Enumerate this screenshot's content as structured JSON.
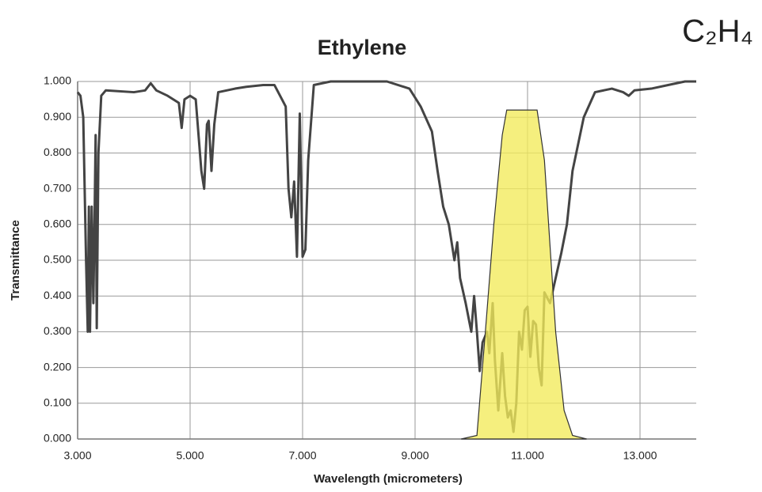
{
  "chart_data": {
    "type": "line",
    "title": "Ethylene",
    "formula": "C₂H₄",
    "x_label": "Wavelength (micrometers)",
    "y_label": "Transmittance",
    "xlim": [
      3,
      14
    ],
    "ylim": [
      0,
      1
    ],
    "xticks": [
      {
        "value": 3,
        "label": "3.000"
      },
      {
        "value": 5,
        "label": "5.000"
      },
      {
        "value": 7,
        "label": "7.000"
      },
      {
        "value": 9,
        "label": "9.000"
      },
      {
        "value": 11,
        "label": "11.000"
      },
      {
        "value": 13,
        "label": "13.000"
      }
    ],
    "yticks": [
      {
        "value": 0,
        "label": "0.000"
      },
      {
        "value": 0.1,
        "label": "0.100"
      },
      {
        "value": 0.2,
        "label": "0.200"
      },
      {
        "value": 0.3,
        "label": "0.300"
      },
      {
        "value": 0.4,
        "label": "0.400"
      },
      {
        "value": 0.5,
        "label": "0.500"
      },
      {
        "value": 0.6,
        "label": "0.600"
      },
      {
        "value": 0.7,
        "label": "0.700"
      },
      {
        "value": 0.8,
        "label": "0.800"
      },
      {
        "value": 0.9,
        "label": "0.900"
      },
      {
        "value": 1,
        "label": "1.000"
      }
    ],
    "grid": true,
    "series": [
      {
        "type": "line",
        "color": "#444444",
        "x": [
          3.0,
          3.05,
          3.1,
          3.15,
          3.18,
          3.2,
          3.22,
          3.25,
          3.28,
          3.3,
          3.32,
          3.34,
          3.37,
          3.42,
          3.5,
          4.0,
          4.2,
          4.3,
          4.4,
          4.6,
          4.8,
          4.85,
          4.9,
          5.0,
          5.1,
          5.2,
          5.25,
          5.3,
          5.33,
          5.38,
          5.43,
          5.5,
          5.8,
          6.0,
          6.3,
          6.5,
          6.7,
          6.75,
          6.8,
          6.85,
          6.9,
          6.95,
          7.0,
          7.05,
          7.1,
          7.2,
          7.5,
          8.0,
          8.5,
          8.9,
          9.1,
          9.3,
          9.4,
          9.5,
          9.6,
          9.7,
          9.75,
          9.8,
          9.9,
          10.0,
          10.05,
          10.1,
          10.15,
          10.2,
          10.28,
          10.32,
          10.38,
          10.42,
          10.48,
          10.55,
          10.6,
          10.65,
          10.7,
          10.75,
          10.8,
          10.85,
          10.9,
          10.95,
          11.0,
          11.05,
          11.1,
          11.15,
          11.2,
          11.25,
          11.3,
          11.4,
          11.5,
          11.6,
          11.7,
          11.8,
          12.0,
          12.2,
          12.5,
          12.7,
          12.8,
          12.9,
          13.2,
          13.5,
          13.8,
          14.0
        ],
        "values": [
          0.97,
          0.96,
          0.9,
          0.5,
          0.3,
          0.65,
          0.3,
          0.65,
          0.38,
          0.6,
          0.85,
          0.31,
          0.8,
          0.96,
          0.975,
          0.97,
          0.975,
          0.995,
          0.975,
          0.96,
          0.94,
          0.87,
          0.95,
          0.96,
          0.95,
          0.75,
          0.7,
          0.88,
          0.89,
          0.75,
          0.88,
          0.97,
          0.98,
          0.985,
          0.99,
          0.99,
          0.93,
          0.7,
          0.62,
          0.72,
          0.51,
          0.91,
          0.51,
          0.53,
          0.78,
          0.99,
          1.0,
          1.0,
          1.0,
          0.98,
          0.93,
          0.86,
          0.75,
          0.65,
          0.6,
          0.5,
          0.55,
          0.45,
          0.38,
          0.3,
          0.4,
          0.3,
          0.19,
          0.27,
          0.3,
          0.24,
          0.38,
          0.22,
          0.08,
          0.24,
          0.12,
          0.06,
          0.08,
          0.02,
          0.1,
          0.3,
          0.25,
          0.36,
          0.37,
          0.23,
          0.33,
          0.32,
          0.2,
          0.15,
          0.41,
          0.38,
          0.45,
          0.52,
          0.6,
          0.75,
          0.9,
          0.97,
          0.98,
          0.97,
          0.96,
          0.975,
          0.98,
          0.99,
          1.0,
          1.0
        ]
      },
      {
        "type": "area",
        "color": "#f2ea5a",
        "x": [
          9.82,
          10.1,
          10.25,
          10.4,
          10.55,
          10.63,
          11.17,
          11.3,
          11.5,
          11.65,
          11.8,
          12.05
        ],
        "values": [
          0,
          0.01,
          0.3,
          0.6,
          0.85,
          0.92,
          0.92,
          0.78,
          0.3,
          0.08,
          0.01,
          0
        ]
      }
    ]
  }
}
